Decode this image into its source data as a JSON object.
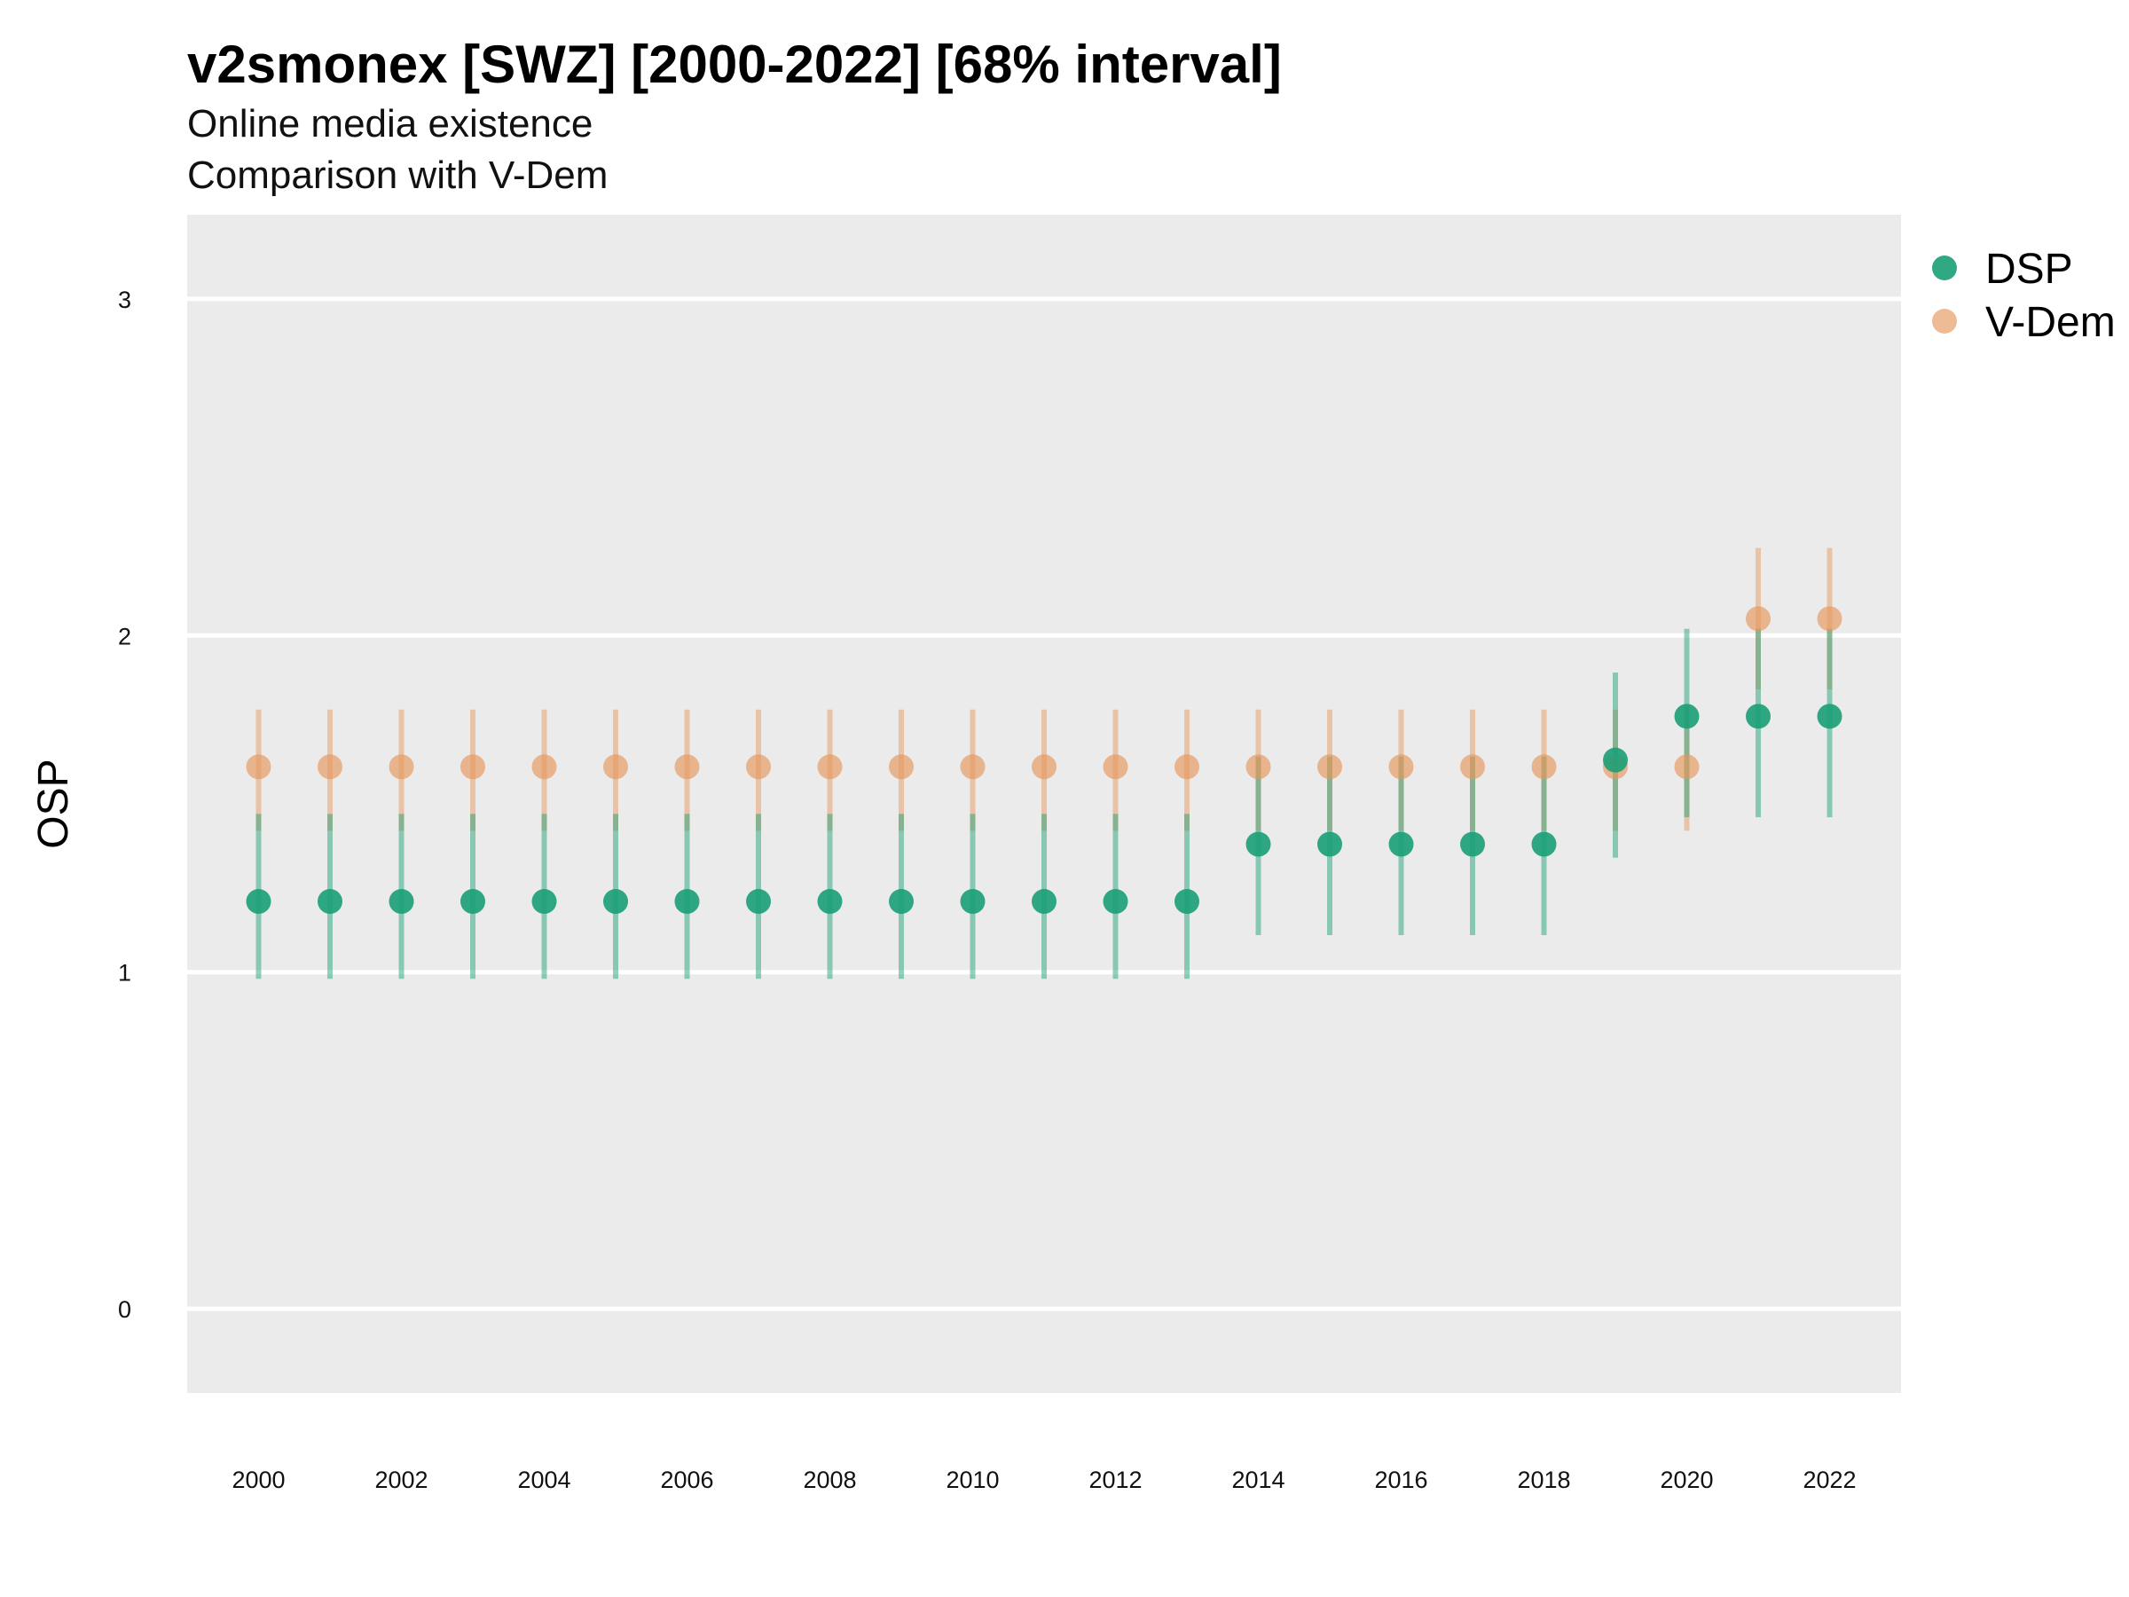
{
  "chart_data": {
    "type": "scatter",
    "title": "v2smonex [SWZ] [2000-2022] [68% interval]",
    "subtitle": "Online media existence",
    "subtitle2": "Comparison with V-Dem",
    "xlabel": "",
    "ylabel": "OSP",
    "xlim": [
      1999,
      2023
    ],
    "ylim": [
      -0.25,
      3.25
    ],
    "x_ticks": [
      2000,
      2002,
      2004,
      2006,
      2008,
      2010,
      2012,
      2014,
      2016,
      2018,
      2020,
      2022
    ],
    "y_ticks": [
      0,
      1,
      2,
      3
    ],
    "grid": true,
    "legend_position": "right",
    "x": [
      2000,
      2001,
      2002,
      2003,
      2004,
      2005,
      2006,
      2007,
      2008,
      2009,
      2010,
      2011,
      2012,
      2013,
      2014,
      2015,
      2016,
      2017,
      2018,
      2019,
      2020,
      2021,
      2022
    ],
    "series": [
      {
        "name": "DSP",
        "color": "#1b9e77",
        "values": [
          1.21,
          1.21,
          1.21,
          1.21,
          1.21,
          1.21,
          1.21,
          1.21,
          1.21,
          1.21,
          1.21,
          1.21,
          1.21,
          1.21,
          1.38,
          1.38,
          1.38,
          1.38,
          1.38,
          1.63,
          1.76,
          1.76,
          1.76
        ],
        "lower": [
          0.98,
          0.98,
          0.98,
          0.98,
          0.98,
          0.98,
          0.98,
          0.98,
          0.98,
          0.98,
          0.98,
          0.98,
          0.98,
          0.98,
          1.11,
          1.11,
          1.11,
          1.11,
          1.11,
          1.34,
          1.46,
          1.46,
          1.46
        ],
        "upper": [
          1.47,
          1.47,
          1.47,
          1.47,
          1.47,
          1.47,
          1.47,
          1.47,
          1.47,
          1.47,
          1.47,
          1.47,
          1.47,
          1.47,
          1.64,
          1.64,
          1.64,
          1.64,
          1.64,
          1.89,
          2.02,
          2.02,
          2.02
        ]
      },
      {
        "name": "V-Dem",
        "color": "#e6975a",
        "values": [
          1.61,
          1.61,
          1.61,
          1.61,
          1.61,
          1.61,
          1.61,
          1.61,
          1.61,
          1.61,
          1.61,
          1.61,
          1.61,
          1.61,
          1.61,
          1.61,
          1.61,
          1.61,
          1.61,
          1.61,
          1.61,
          2.05,
          2.05
        ],
        "lower": [
          1.42,
          1.42,
          1.42,
          1.42,
          1.42,
          1.42,
          1.42,
          1.42,
          1.42,
          1.42,
          1.42,
          1.42,
          1.42,
          1.42,
          1.42,
          1.42,
          1.42,
          1.42,
          1.42,
          1.42,
          1.42,
          1.84,
          1.84
        ],
        "upper": [
          1.78,
          1.78,
          1.78,
          1.78,
          1.78,
          1.78,
          1.78,
          1.78,
          1.78,
          1.78,
          1.78,
          1.78,
          1.78,
          1.78,
          1.78,
          1.78,
          1.78,
          1.78,
          1.78,
          1.78,
          1.78,
          2.26,
          2.26
        ]
      }
    ]
  }
}
